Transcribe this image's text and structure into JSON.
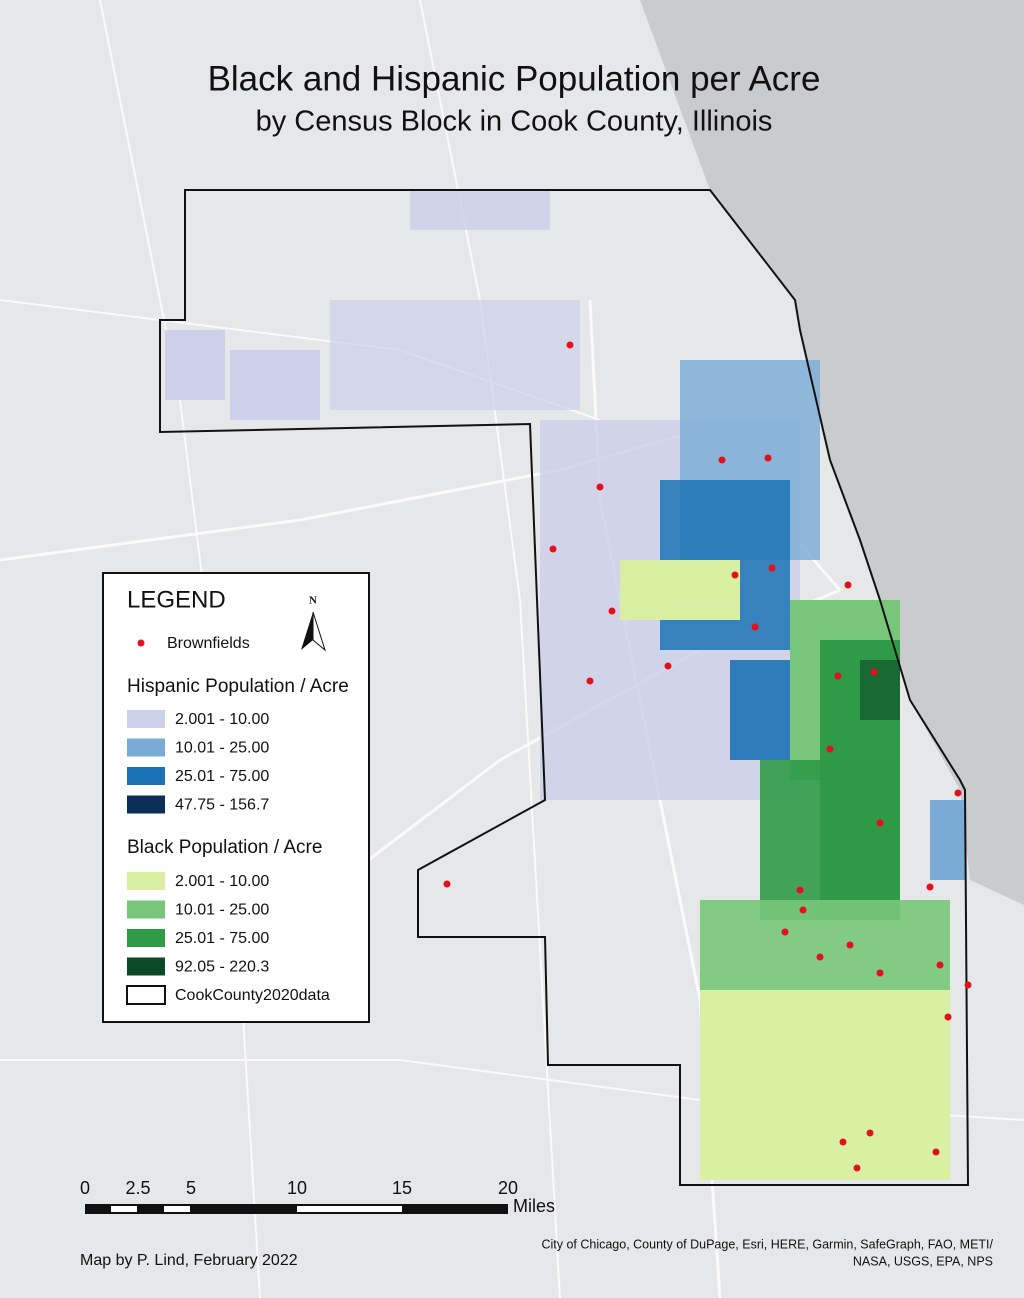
{
  "header": {
    "title": "Black and Hispanic Population per Acre",
    "subtitle": "by Census Block in Cook County, Illinois"
  },
  "legend": {
    "title": "LEGEND",
    "north": "N",
    "brownfields": {
      "label": "Brownfields",
      "color": "#e3111b"
    },
    "hispanic": {
      "heading": "Hispanic Population / Acre",
      "classes": [
        {
          "label": "2.001 - 10.00",
          "color": "#ccd0e8"
        },
        {
          "label": "10.01 - 25.00",
          "color": "#79abd6"
        },
        {
          "label": "25.01 - 75.00",
          "color": "#1c73b5"
        },
        {
          "label": "47.75 - 156.7",
          "color": "#0c2f57"
        }
      ]
    },
    "black": {
      "heading": "Black Population / Acre",
      "classes": [
        {
          "label": "2.001 - 10.00",
          "color": "#d9f0a3"
        },
        {
          "label": "10.01 - 25.00",
          "color": "#78c679"
        },
        {
          "label": "25.01 - 75.00",
          "color": "#2f9a48"
        },
        {
          "label": "92.05 - 220.3",
          "color": "#0a4a28"
        }
      ]
    },
    "boundary": "CookCounty2020data"
  },
  "scale_bar": {
    "ticks": [
      "0",
      "2.5",
      "5",
      "10",
      "15",
      "20"
    ],
    "unit": "Miles"
  },
  "credit": "Map by P. Lind, February 2022",
  "attribution": [
    "City of Chicago, County of DuPage, Esri, HERE, Garmin, SafeGraph, FAO, METI/",
    "NASA, USGS, EPA, NPS"
  ]
}
